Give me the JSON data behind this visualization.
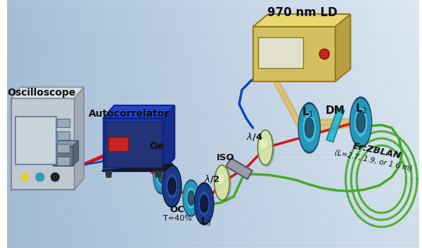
{
  "bg_left": "#a8c0d8",
  "bg_right": "#dde8f2",
  "bg_bottom": "#c8d8ea",
  "components": {
    "LD_label": "970 nm LD",
    "osc_label": "Oscilloscope",
    "ac_label": "Autocorrelator",
    "ge_label": "Ge",
    "oc_label": "OC",
    "oc_sub": "T=40%",
    "l3_label": "L",
    "lhalf_label": "λ/2",
    "iso_label": "ISO",
    "lquart_label": "λ/4",
    "l1_label": "L",
    "dm_label": "DM",
    "l2_label": "L",
    "fiber_label": "Er:ZBLAN",
    "fiber_sub": "(L=2.7, 1.9, or 1.6 m)"
  },
  "red": "#dd1111",
  "yellow_beam": "#c8a030",
  "blue_fiber": "#1144bb",
  "green_fiber": "#44aa22",
  "ld_color": "#d4c060",
  "ld_top": "#e8d870",
  "ld_side": "#b8a040",
  "osc_body": "#b0bac4",
  "osc_screen": "#c8d4d8",
  "ac_body": "#1a3aaa",
  "ac_top": "#2244cc",
  "ac_side": "#162e88",
  "lens_teal": "#2299bb",
  "lens_teal_hi": "#55ccee",
  "lens_blue": "#1a3a88",
  "lens_blue_hi": "#3355bb",
  "dm_teal": "#22bbcc",
  "waveplate": "#d8e8aa",
  "iso_gray": "#888899",
  "ge_teal": "#2288bb",
  "rod_color": "#d4b870",
  "det_gray": "#707888"
}
